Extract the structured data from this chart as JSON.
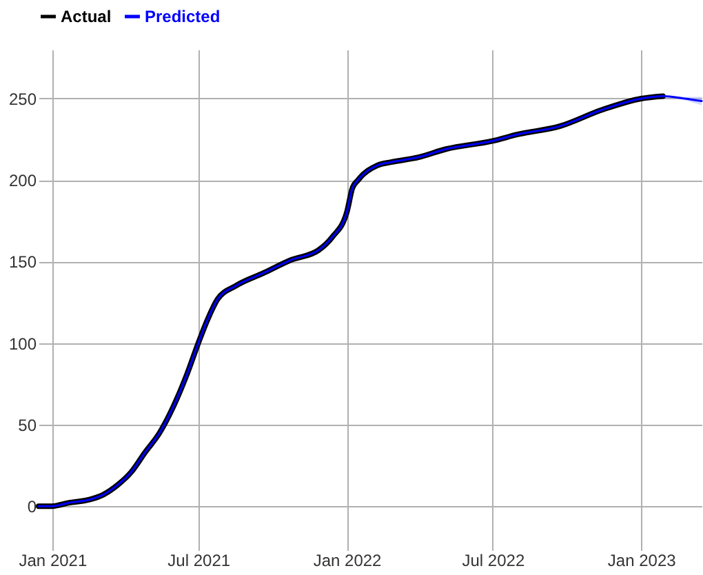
{
  "chart_data": {
    "type": "line",
    "xlim": [
      "2020-12-15",
      "2023-03-17"
    ],
    "xticks": [
      {
        "value": "2021-01-01",
        "label": "Jan 2021"
      },
      {
        "value": "2021-07-01",
        "label": "Jul 2021"
      },
      {
        "value": "2022-01-01",
        "label": "Jan 2022"
      },
      {
        "value": "2022-07-01",
        "label": "Jul 2022"
      },
      {
        "value": "2023-01-01",
        "label": "Jan 2023"
      }
    ],
    "ylim": [
      -27,
      280
    ],
    "yticks": [
      0,
      50,
      100,
      150,
      200,
      250
    ],
    "grid": true,
    "legend": "top",
    "series": [
      {
        "name": "Actual",
        "color": "#000000",
        "x": [
          "2020-12-15",
          "2021-01-01",
          "2021-01-21",
          "2021-02-16",
          "2021-03-05",
          "2021-03-23",
          "2021-04-09",
          "2021-04-26",
          "2021-05-14",
          "2021-05-31",
          "2021-06-17",
          "2021-07-01",
          "2021-07-13",
          "2021-07-25",
          "2021-08-16",
          "2021-09-20",
          "2021-10-24",
          "2021-11-27",
          "2021-12-14",
          "2022-01-01",
          "2022-01-08",
          "2022-01-15",
          "2022-02-08",
          "2022-02-25",
          "2022-03-31",
          "2022-05-04",
          "2022-07-01",
          "2022-08-01",
          "2022-09-22",
          "2022-11-13",
          "2023-01-01",
          "2023-01-28"
        ],
        "values": [
          0,
          0,
          2,
          4,
          7,
          13,
          21,
          33,
          45,
          61,
          81,
          100,
          115,
          127,
          135,
          143,
          151,
          157,
          165,
          180,
          195,
          200,
          209,
          211,
          214,
          219,
          224,
          228,
          233,
          243,
          250,
          251.5
        ]
      },
      {
        "name": "Predicted",
        "color": "#0000ff",
        "x": [
          "2020-12-15",
          "2021-01-01",
          "2021-01-21",
          "2021-02-16",
          "2021-03-05",
          "2021-03-23",
          "2021-04-09",
          "2021-04-26",
          "2021-05-14",
          "2021-05-31",
          "2021-06-17",
          "2021-07-01",
          "2021-07-13",
          "2021-07-25",
          "2021-08-16",
          "2021-09-20",
          "2021-10-24",
          "2021-11-27",
          "2021-12-14",
          "2022-01-01",
          "2022-01-08",
          "2022-01-15",
          "2022-02-08",
          "2022-02-25",
          "2022-03-31",
          "2022-05-04",
          "2022-07-01",
          "2022-08-01",
          "2022-09-22",
          "2022-11-13",
          "2023-01-01",
          "2023-01-28",
          "2023-02-24",
          "2023-03-17"
        ],
        "values": [
          0,
          0,
          2,
          4,
          7,
          13,
          21,
          33,
          45,
          61,
          81,
          100,
          115,
          127,
          135,
          143,
          151,
          157,
          165,
          180,
          195,
          200,
          209,
          211,
          214,
          219,
          224,
          228,
          233,
          243,
          250,
          251.5,
          250,
          248.5
        ],
        "lower": [
          null,
          null,
          null,
          null,
          null,
          null,
          null,
          null,
          null,
          null,
          null,
          null,
          null,
          null,
          null,
          null,
          null,
          null,
          null,
          null,
          null,
          null,
          null,
          null,
          null,
          null,
          null,
          null,
          null,
          null,
          null,
          251.5,
          249,
          246
        ],
        "upper": [
          null,
          null,
          null,
          null,
          null,
          null,
          null,
          null,
          null,
          null,
          null,
          null,
          null,
          null,
          null,
          null,
          null,
          null,
          null,
          null,
          null,
          null,
          null,
          null,
          null,
          null,
          null,
          null,
          null,
          null,
          null,
          251.5,
          251,
          251
        ]
      }
    ]
  }
}
